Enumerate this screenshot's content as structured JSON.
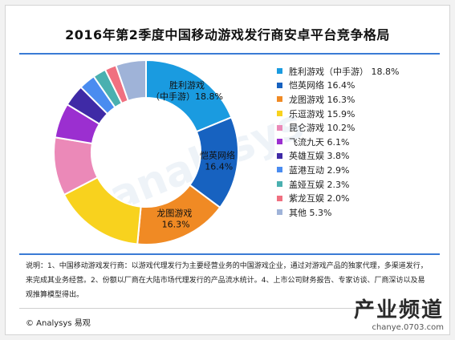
{
  "title": "2016年第2季度中国移动游戏发行商安卓平台竞争格局",
  "note": "说明：1、中国移动游戏发行商：以游戏代理发行为主要经营业务的中国游戏企业，通过对游戏产品的独家代理，多渠道发行，来完成其业务经营。2、份额以厂商在大陆市场代理发行的产品流水统计。4、上市公司财务报告、专家访谈、厂商深访以及易观推算模型得出。",
  "footer": "© Analysys 易观",
  "watermark": {
    "main": "analysys",
    "corner_logo": "产业频道",
    "corner_url": "chanye.0703.com"
  },
  "chart_data": {
    "type": "pie",
    "style": "donut",
    "title": "2016年第2季度中国移动游戏发行商安卓平台竞争格局",
    "legend_position": "right",
    "slices": [
      {
        "name": "胜利游戏（中手游）",
        "value": 18.8,
        "label": "18.8%",
        "color": "#1a9be0",
        "chart_label": "胜利游戏（中手游）18.8%"
      },
      {
        "name": "恺英网络",
        "value": 16.4,
        "label": "16.4%",
        "color": "#1762c0",
        "chart_label": "恺英网络 16.4%"
      },
      {
        "name": "龙图游戏",
        "value": 16.3,
        "label": "16.3%",
        "color": "#f08a24",
        "chart_label": "龙图游戏 16.3%"
      },
      {
        "name": "乐逗游戏",
        "value": 15.9,
        "label": "15.9%",
        "color": "#f8d21e"
      },
      {
        "name": "昆仑游戏",
        "value": 10.2,
        "label": "10.2%",
        "color": "#eb89b8"
      },
      {
        "name": "飞流九天",
        "value": 6.1,
        "label": "6.1%",
        "color": "#9b2fd0"
      },
      {
        "name": "英雄互娱",
        "value": 3.8,
        "label": "3.8%",
        "color": "#3f2aa6"
      },
      {
        "name": "蓝港互动",
        "value": 2.9,
        "label": "2.9%",
        "color": "#4a8cf0"
      },
      {
        "name": "盖娅互娱",
        "value": 2.3,
        "label": "2.3%",
        "color": "#4ab0b0"
      },
      {
        "name": "紫龙互娱",
        "value": 2.0,
        "label": "2.0%",
        "color": "#f07080"
      },
      {
        "name": "其他",
        "value": 5.3,
        "label": "5.3%",
        "color": "#9fb3d8"
      }
    ]
  }
}
